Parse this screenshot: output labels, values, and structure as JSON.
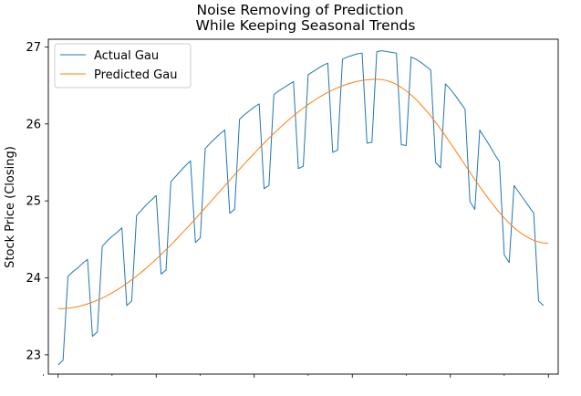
{
  "colors": {
    "actual": "#1f77b4",
    "predicted": "#ff7f0e"
  },
  "chart_data": {
    "type": "line",
    "title_line1": "Noise Removing of Prediction",
    "title_line2": "While Keeping Seasonal Trends",
    "xlabel": "",
    "ylabel": "Stock Price (Closing)",
    "ylim": [
      22.75,
      27.1
    ],
    "yticks": [
      23,
      24,
      25,
      26,
      27
    ],
    "xlim": [
      -2,
      102
    ],
    "grid": false,
    "legend_position": "top-left",
    "series": [
      {
        "name": "Actual Gau",
        "x": [
          0,
          1,
          2,
          3,
          4,
          5,
          6,
          7,
          8,
          9,
          10,
          11,
          12,
          13,
          14,
          15,
          16,
          17,
          18,
          19,
          20,
          21,
          22,
          23,
          24,
          25,
          26,
          27,
          28,
          29,
          30,
          31,
          32,
          33,
          34,
          35,
          36,
          37,
          38,
          39,
          40,
          41,
          42,
          43,
          44,
          45,
          46,
          47,
          48,
          49,
          50,
          51,
          52,
          53,
          54,
          55,
          56,
          57,
          58,
          59,
          60,
          61,
          62,
          63,
          64,
          65,
          66,
          67,
          68,
          69,
          70,
          71,
          72,
          73,
          74,
          75,
          76,
          77,
          78,
          79,
          80,
          81,
          82,
          83,
          84,
          85,
          86,
          87,
          88,
          89,
          90,
          91,
          92,
          93,
          94,
          95,
          96,
          97,
          98,
          99,
          100
        ],
        "values": [
          22.87,
          22.93,
          24.02,
          24.08,
          24.13,
          24.19,
          24.24,
          23.24,
          23.3,
          24.41,
          24.48,
          24.54,
          24.59,
          24.65,
          23.64,
          23.7,
          24.81,
          24.88,
          24.95,
          25.01,
          25.07,
          24.05,
          24.1,
          25.25,
          25.32,
          25.39,
          25.46,
          25.52,
          24.46,
          24.52,
          25.68,
          25.75,
          25.81,
          25.87,
          25.92,
          24.84,
          24.89,
          26.06,
          26.12,
          26.17,
          26.22,
          26.26,
          25.16,
          25.2,
          26.38,
          26.43,
          26.47,
          26.51,
          26.55,
          25.42,
          25.45,
          26.64,
          26.68,
          26.72,
          26.76,
          26.79,
          25.63,
          25.66,
          26.84,
          26.87,
          26.89,
          26.91,
          26.92,
          25.75,
          25.76,
          26.94,
          26.95,
          26.94,
          26.93,
          26.92,
          25.73,
          25.72,
          26.87,
          26.84,
          26.8,
          26.75,
          26.7,
          25.5,
          25.43,
          26.52,
          26.45,
          26.37,
          26.28,
          26.19,
          24.99,
          24.89,
          25.92,
          25.82,
          25.72,
          25.61,
          25.51,
          24.3,
          24.2,
          25.2,
          25.11,
          25.02,
          24.93,
          24.84,
          23.7,
          23.64,
          null
        ]
      },
      {
        "name": "Predicted Gau",
        "x": [
          0,
          100
        ],
        "values": [
          23.6,
          24.45
        ],
        "peak_x": 65,
        "peak_value": 26.58
      }
    ]
  }
}
